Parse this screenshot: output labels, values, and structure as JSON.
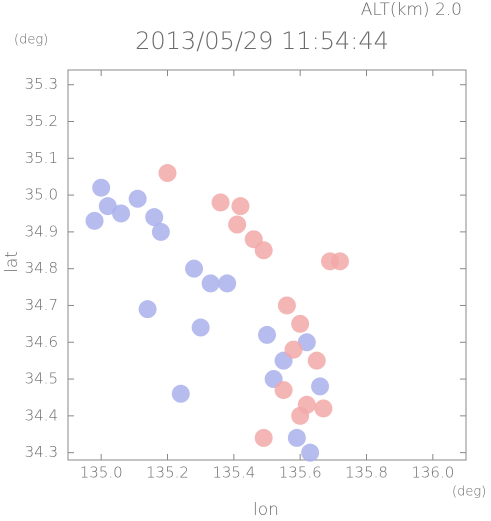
{
  "chart_data": {
    "type": "scatter",
    "title": "2013/05/29 11:54:44",
    "subtitle": "ALT(km)  2.0",
    "y_unit": "(deg)",
    "x_unit": "(deg)",
    "ylabel": "lat",
    "xlabel": "lon",
    "xlim": [
      134.9,
      136.1
    ],
    "ylim": [
      34.28,
      35.34
    ],
    "xticks": [
      {
        "value": 135,
        "label": "135.0"
      },
      135.2,
      135.4,
      135.6,
      135.8,
      {
        "value": 136,
        "label": "136.0"
      }
    ],
    "yticks": [
      35.3,
      35.2,
      35.1,
      {
        "value": 35,
        "label": "35.0"
      },
      34.9,
      34.8,
      34.7,
      34.6,
      34.5,
      34.4,
      34.3
    ],
    "series": [
      {
        "color": "#aab0ec",
        "x": [
          135.02,
          134.98,
          135.06,
          135.0,
          135.11,
          135.18,
          135.16,
          135.28,
          135.33,
          135.38,
          135.3,
          135.5,
          135.55,
          135.52,
          135.62,
          135.66,
          135.63,
          135.59,
          135.24,
          135.14
        ],
        "y": [
          34.97,
          34.93,
          34.95,
          35.02,
          34.99,
          34.9,
          34.94,
          34.8,
          34.76,
          34.76,
          34.64,
          34.62,
          34.55,
          34.5,
          34.6,
          34.48,
          34.3,
          34.34,
          34.46,
          34.69
        ]
      },
      {
        "color": "#f2a8a8",
        "x": [
          135.36,
          135.42,
          135.41,
          135.46,
          135.49,
          135.2,
          135.69,
          135.72,
          135.56,
          135.6,
          135.58,
          135.65,
          135.55,
          135.62,
          135.67,
          135.6,
          135.49
        ],
        "y": [
          34.98,
          34.97,
          34.92,
          34.88,
          34.85,
          35.06,
          34.82,
          34.82,
          34.7,
          34.65,
          34.58,
          34.55,
          34.47,
          34.43,
          34.42,
          34.4,
          34.34
        ]
      }
    ]
  }
}
